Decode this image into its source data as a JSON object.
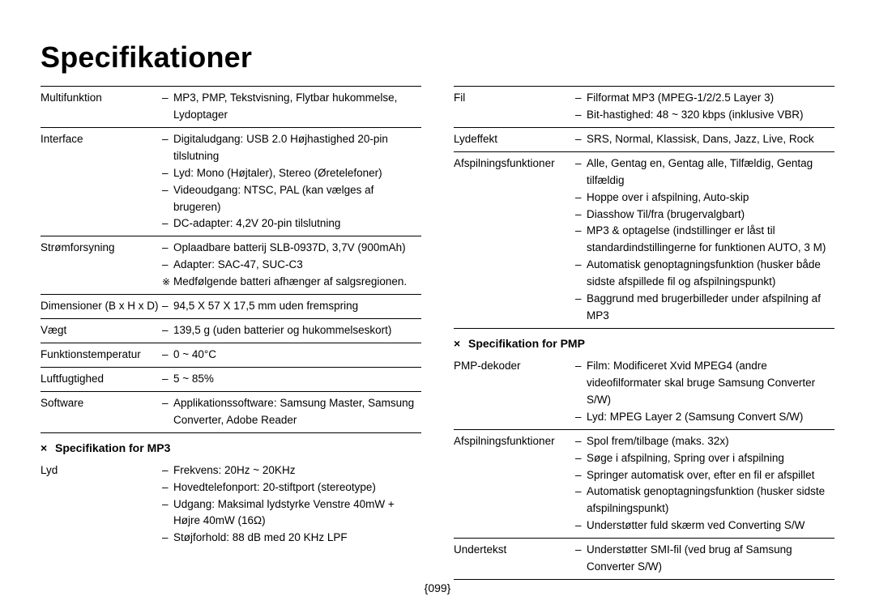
{
  "title": "Specifikationer",
  "page_number": "{099}",
  "colors": {
    "text": "#000000",
    "background": "#ffffff",
    "rule": "#000000"
  },
  "font": {
    "title_size_pt": 27,
    "body_size_pt": 10
  },
  "left_column": {
    "rows": [
      {
        "label": "Multifunktion",
        "values": [
          "MP3, PMP, Tekstvisning, Flytbar hukommelse, Lydoptager"
        ]
      },
      {
        "label": "Interface",
        "values": [
          "Digitaludgang: USB 2.0 Højhastighed 20-pin tilslutning",
          "Lyd: Mono (Højtaler), Stereo (Øretelefoner)",
          "Videoudgang: NTSC, PAL (kan vælges af brugeren)",
          "DC-adapter: 4,2V 20-pin tilslutning"
        ]
      },
      {
        "label": "Strømforsyning",
        "values": [
          "Oplaadbare batterij SLB-0937D, 3,7V (900mAh)",
          "Adapter: SAC-47, SUC-C3"
        ],
        "note": "Medfølgende batteri afhænger af salgsregionen."
      },
      {
        "label": "Dimensioner (B x H x D)",
        "values": [
          "94,5 X 57 X 17,5 mm uden fremspring"
        ]
      },
      {
        "label": "Vægt",
        "values": [
          "139,5 g (uden batterier og hukommelseskort)"
        ]
      },
      {
        "label": "Funktionstemperatur",
        "values": [
          "0 ~ 40°C"
        ]
      },
      {
        "label": "Luftfugtighed",
        "values": [
          "5 ~ 85%"
        ]
      },
      {
        "label": "Software",
        "values": [
          "Applikationssoftware: Samsung Master, Samsung Converter, Adobe Reader"
        ]
      }
    ],
    "section_mp3": {
      "heading": "Specifikation for MP3",
      "rows": [
        {
          "label": "Lyd",
          "values": [
            "Frekvens: 20Hz ~ 20KHz",
            "Hovedtelefonport: 20-stiftport (stereotype)",
            "Udgang: Maksimal lydstyrke Venstre 40mW + Højre 40mW (16Ω)",
            "Støjforhold: 88 dB med 20 KHz LPF"
          ]
        }
      ]
    }
  },
  "right_column": {
    "rows": [
      {
        "label": "Fil",
        "values": [
          "Filformat MP3 (MPEG-1/2/2.5 Layer 3)",
          "Bit-hastighed: 48 ~ 320 kbps (inklusive VBR)"
        ]
      },
      {
        "label": "Lydeffekt",
        "values": [
          "SRS, Normal, Klassisk, Dans, Jazz, Live, Rock"
        ]
      },
      {
        "label": "Afspilningsfunktioner",
        "values": [
          "Alle, Gentag en, Gentag alle, Tilfældig, Gentag tilfældig",
          "Hoppe over i afspilning, Auto-skip",
          "Diasshow Til/fra (brugervalgbart)",
          "MP3 & optagelse (indstillinger er låst til standardindstillingerne for funktionen AUTO, 3 M)",
          "Automatisk genoptagningsfunktion (husker både sidste afspillede fil og afspilningspunkt)",
          "Baggrund med brugerbilleder under afspilning af MP3"
        ]
      }
    ],
    "section_pmp": {
      "heading": "Specifikation for PMP",
      "rows": [
        {
          "label": "PMP-dekoder",
          "values": [
            "Film: Modificeret Xvid MPEG4 (andre videofilformater skal bruge Samsung Converter S/W)",
            "Lyd: MPEG Layer 2 (Samsung Convert S/W)"
          ]
        },
        {
          "label": "Afspilningsfunktioner",
          "values": [
            "Spol frem/tilbage (maks. 32x)",
            "Søge i afspilning, Spring over i afspilning",
            "Springer automatisk over, efter en fil er afspillet",
            "Automatisk genoptagningsfunktion (husker sidste afspilningspunkt)",
            "Understøtter fuld skærm ved Converting S/W"
          ]
        },
        {
          "label": "Undertekst",
          "values": [
            "Understøtter SMI-fil (ved brug af Samsung Converter S/W)"
          ]
        }
      ]
    }
  }
}
